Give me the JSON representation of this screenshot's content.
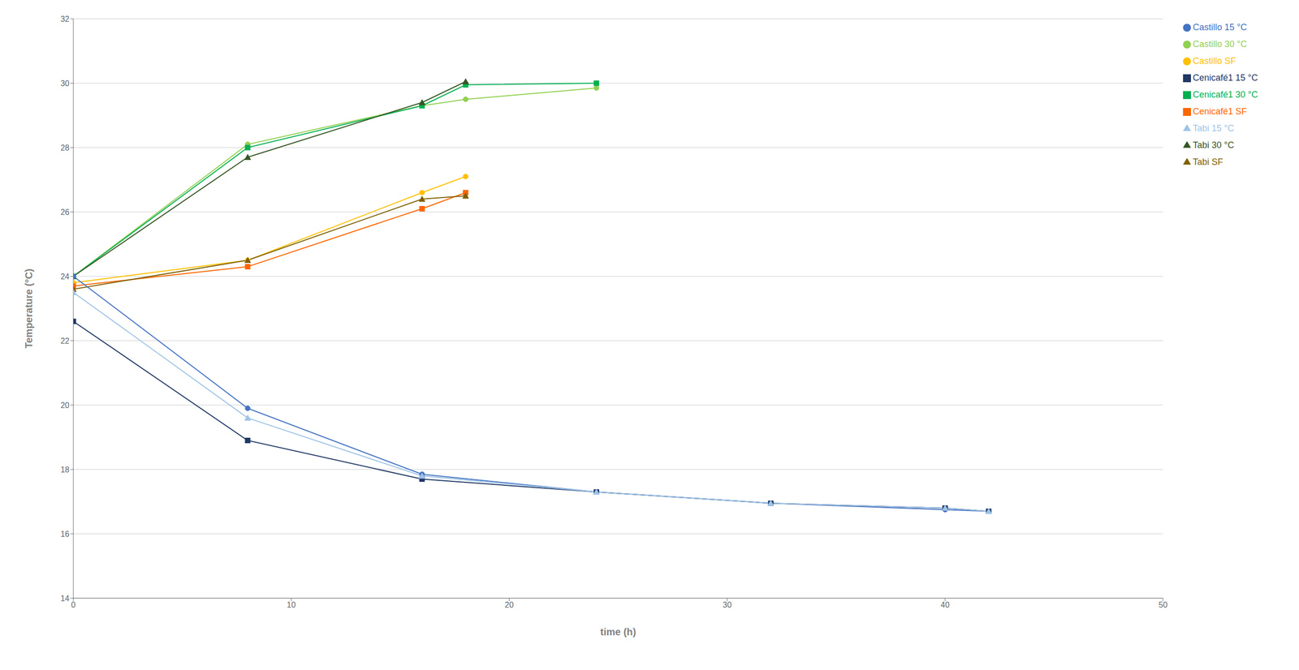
{
  "chart_data": {
    "type": "line",
    "xlabel": "time (h)",
    "ylabel": "Temperature (°C)",
    "xlim": [
      0,
      50
    ],
    "ylim": [
      14,
      32
    ],
    "xticks": [
      0,
      10,
      20,
      30,
      40,
      50
    ],
    "yticks": [
      14,
      16,
      18,
      20,
      22,
      24,
      26,
      28,
      30,
      32
    ],
    "grid": true,
    "legend": "right",
    "series": [
      {
        "name": "Castillo 30 °C",
        "color": "#92D050",
        "marker": "circle",
        "x": [
          0,
          8,
          16,
          18,
          24
        ],
        "values": [
          24.0,
          28.1,
          29.3,
          29.5,
          29.85
        ]
      },
      {
        "name": "Cenicafé1 30 °C",
        "color": "#00B050",
        "marker": "square",
        "x": [
          0,
          8,
          16,
          18,
          24
        ],
        "values": [
          24.0,
          28.0,
          29.3,
          29.95,
          30.0
        ]
      },
      {
        "name": "Tabi 30 °C",
        "color": "#375623",
        "marker": "triangle",
        "x": [
          0,
          8,
          16,
          18
        ],
        "values": [
          24.0,
          27.7,
          29.4,
          30.05
        ]
      },
      {
        "name": "Castillo SF",
        "color": "#FFC000",
        "marker": "circle",
        "x": [
          0,
          8,
          16,
          18
        ],
        "values": [
          23.8,
          24.5,
          26.6,
          27.1
        ]
      },
      {
        "name": "Cenicafé1 SF",
        "color": "#FF6600",
        "marker": "square",
        "x": [
          0,
          8,
          16,
          18
        ],
        "values": [
          23.7,
          24.3,
          26.1,
          26.6
        ]
      },
      {
        "name": "Tabi SF",
        "color": "#7F6000",
        "marker": "triangle",
        "x": [
          0,
          8,
          16,
          18
        ],
        "values": [
          23.6,
          24.5,
          26.4,
          26.5
        ]
      },
      {
        "name": "Castillo 15 °C",
        "color": "#4472C4",
        "marker": "circle",
        "x": [
          0,
          8,
          16,
          24,
          32,
          40,
          42
        ],
        "values": [
          24.0,
          19.9,
          17.85,
          17.3,
          16.95,
          16.75,
          16.7
        ]
      },
      {
        "name": "Cenicafé1 15 °C",
        "color": "#1F3864",
        "marker": "square",
        "x": [
          0,
          8,
          16,
          24,
          32,
          40,
          42
        ],
        "values": [
          22.6,
          18.9,
          17.7,
          17.3,
          16.95,
          16.8,
          16.7
        ]
      },
      {
        "name": "Tabi 15 °C",
        "color": "#9DC3E6",
        "marker": "triangle",
        "x": [
          0,
          8,
          16,
          24,
          32,
          40,
          42
        ],
        "values": [
          23.5,
          19.6,
          17.8,
          17.3,
          16.95,
          16.8,
          16.7
        ]
      }
    ]
  }
}
